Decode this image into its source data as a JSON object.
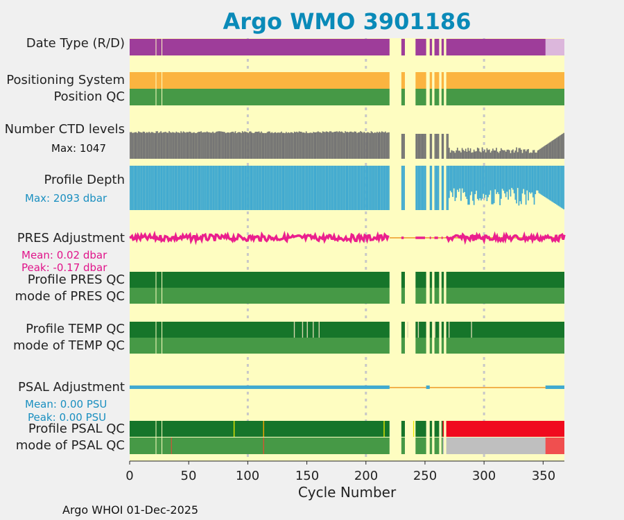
{
  "chart_data": {
    "type": "float-status-timeline",
    "title": "Argo WMO 3901186",
    "xlabel": "Cycle Number",
    "xlim": [
      0,
      368
    ],
    "xticks": [
      0,
      50,
      100,
      150,
      200,
      250,
      300,
      350
    ],
    "grid": "dashed vertical at 100, 200, 300",
    "rows": [
      {
        "label": "Date Type (R/D)",
        "status": "realtime to cycle 351, delayed-mode after",
        "colors": [
          "#9e3d9a",
          "#dcb7dc"
        ]
      },
      {
        "label": "Positioning System",
        "color": "#fbb440"
      },
      {
        "label": "Position QC",
        "color": "#469946"
      },
      {
        "label": "Number CTD levels",
        "color": "#747474",
        "max_label": "Max: 1047"
      },
      {
        "label": "Profile Depth",
        "color": "#41aad0",
        "max_label": "Max: 2093 dbar"
      },
      {
        "label": "PRES Adjustment",
        "color": "#ea1f8d",
        "mean_label": "Mean: 0.02 dbar",
        "peak_label": "Peak: -0.17 dbar"
      },
      {
        "label": "Profile PRES QC",
        "color": "#16752a"
      },
      {
        "label": "mode of PRES QC",
        "color": "#469946"
      },
      {
        "label": "Profile TEMP QC",
        "color": "#16752a"
      },
      {
        "label": "mode of TEMP QC",
        "color": "#469946"
      },
      {
        "label": "PSAL Adjustment",
        "color": "#41aad0",
        "mean_label": "Mean: 0.00 PSU",
        "peak_label": "Peak: 0.00 PSU"
      },
      {
        "label": "Profile PSAL QC",
        "colors": [
          "#16752a",
          "#f00a1e"
        ]
      },
      {
        "label": "mode of PSAL QC",
        "colors": [
          "#469946",
          "#bfbfbf",
          "#f04f4f"
        ]
      }
    ],
    "missing_cycles": [
      [
        220,
        230
      ],
      [
        233,
        242
      ],
      [
        251,
        254
      ],
      [
        256,
        258
      ],
      [
        262,
        264
      ],
      [
        266,
        268
      ]
    ],
    "gap_cycles": [
      22,
      27
    ],
    "psal_profile_qc_bad_from": 265,
    "psal_mode_qc_bad_from": 352,
    "background_color": "#fefdc1"
  },
  "footer": "Argo WHOI 01-Dec-2025"
}
